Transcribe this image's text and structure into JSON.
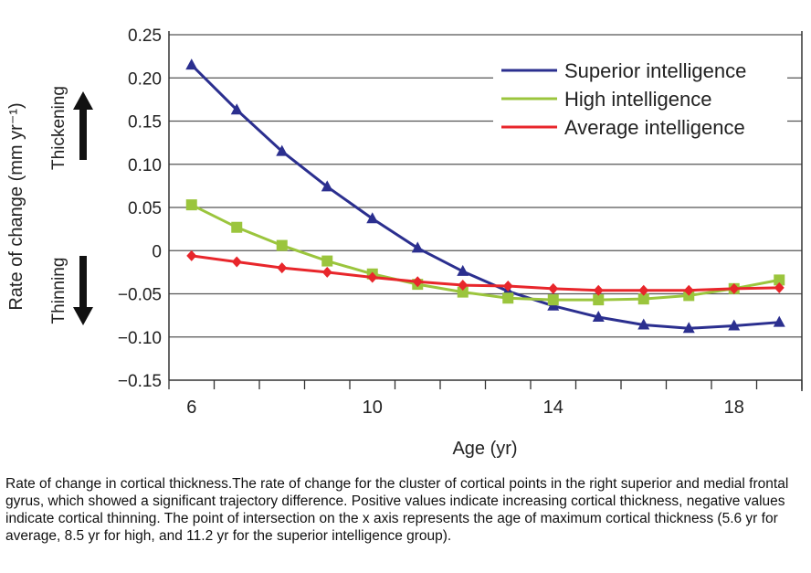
{
  "chart_data": {
    "type": "line",
    "xlabel": "Age (yr)",
    "ylabel": "Rate of change (mm yr⁻¹)",
    "xlim": [
      5.5,
      19.5
    ],
    "ylim": [
      -0.15,
      0.25
    ],
    "x_ticks": [
      6,
      10,
      14,
      18
    ],
    "x_tick_labels": [
      "6",
      "10",
      "14",
      "18"
    ],
    "y_ticks": [
      0.25,
      0.2,
      0.15,
      0.1,
      0.05,
      0,
      -0.05,
      -0.1,
      -0.15
    ],
    "y_tick_labels": [
      "0.25",
      "0.20",
      "0.15",
      "0.10",
      "0.05",
      "0",
      "−0.05",
      "−0.10",
      "−0.15"
    ],
    "grid": "horizontal",
    "legend_position": "top-right",
    "annotations": {
      "up": "Thickening",
      "down": "Thinning"
    },
    "x": [
      6,
      7,
      8,
      9,
      10,
      11,
      12,
      13,
      14,
      15,
      16,
      17,
      18,
      19
    ],
    "series": [
      {
        "name": "Superior intelligence",
        "color": "#2b2f8f",
        "marker": "triangle",
        "values": [
          0.215,
          0.163,
          0.115,
          0.074,
          0.037,
          0.003,
          -0.024,
          -0.047,
          -0.064,
          -0.077,
          -0.086,
          -0.09,
          -0.087,
          -0.083
        ]
      },
      {
        "name": "High intelligence",
        "color": "#9bc53d",
        "marker": "square",
        "values": [
          0.053,
          0.027,
          0.006,
          -0.012,
          -0.027,
          -0.039,
          -0.048,
          -0.055,
          -0.057,
          -0.057,
          -0.056,
          -0.052,
          -0.044,
          -0.034
        ]
      },
      {
        "name": "Average intelligence",
        "color": "#e8262b",
        "marker": "diamond",
        "values": [
          -0.006,
          -0.013,
          -0.02,
          -0.025,
          -0.031,
          -0.036,
          -0.04,
          -0.041,
          -0.044,
          -0.046,
          -0.046,
          -0.046,
          -0.044,
          -0.043
        ]
      }
    ]
  },
  "caption": "Rate of change in cortical thickness.The rate of change for the cluster of cortical points in the right superior and medial frontal gyrus, which showed a significant trajectory difference. Positive values indicate increasing cortical thickness, negative values indicate cortical thinning. The point of intersection on the x axis represents the age of maximum cortical thickness (5.6 yr for average, 8.5 yr for high, and 11.2 yr for the superior intelligence group)."
}
